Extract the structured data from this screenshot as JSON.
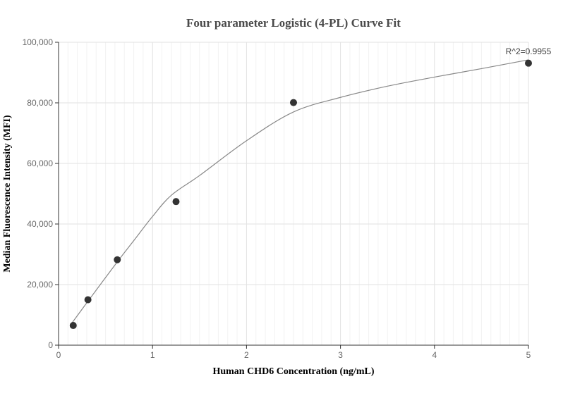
{
  "chart_data": {
    "type": "scatter",
    "title": "Four parameter Logistic (4-PL) Curve Fit",
    "xlabel": "Human CHD6 Concentration (ng/mL)",
    "ylabel": "Median Fluorescence Intensity (MFI)",
    "xlim": [
      0,
      5
    ],
    "ylim": [
      0,
      100000
    ],
    "xticks": [
      0,
      1,
      2,
      3,
      4,
      5
    ],
    "xtick_labels": [
      "0",
      "1",
      "2",
      "3",
      "4",
      "5"
    ],
    "yticks": [
      0,
      20000,
      40000,
      60000,
      80000,
      100000
    ],
    "ytick_labels": [
      "0",
      "20,000",
      "40,000",
      "60,000",
      "80,000",
      "100,000"
    ],
    "grid": true,
    "series": [
      {
        "kind": "points",
        "color": "#333333",
        "x": [
          0.156,
          0.3125,
          0.625,
          1.25,
          2.5,
          5.0
        ],
        "y": [
          6500,
          15000,
          28200,
          47400,
          80100,
          93100
        ]
      },
      {
        "kind": "fit-curve",
        "color": "#888888",
        "x": [
          0.135,
          0.3125,
          0.625,
          0.8,
          1.0,
          1.2,
          1.5,
          2.0,
          2.5,
          3.0,
          3.5,
          4.0,
          4.5,
          5.0
        ],
        "y": [
          7000,
          14500,
          27500,
          34500,
          42500,
          49500,
          56000,
          67500,
          77000,
          81800,
          85500,
          88500,
          91300,
          94200
        ]
      }
    ],
    "annotations": [
      {
        "text": "R^2=0.9955",
        "x": 5.0,
        "y": 93100
      }
    ]
  }
}
